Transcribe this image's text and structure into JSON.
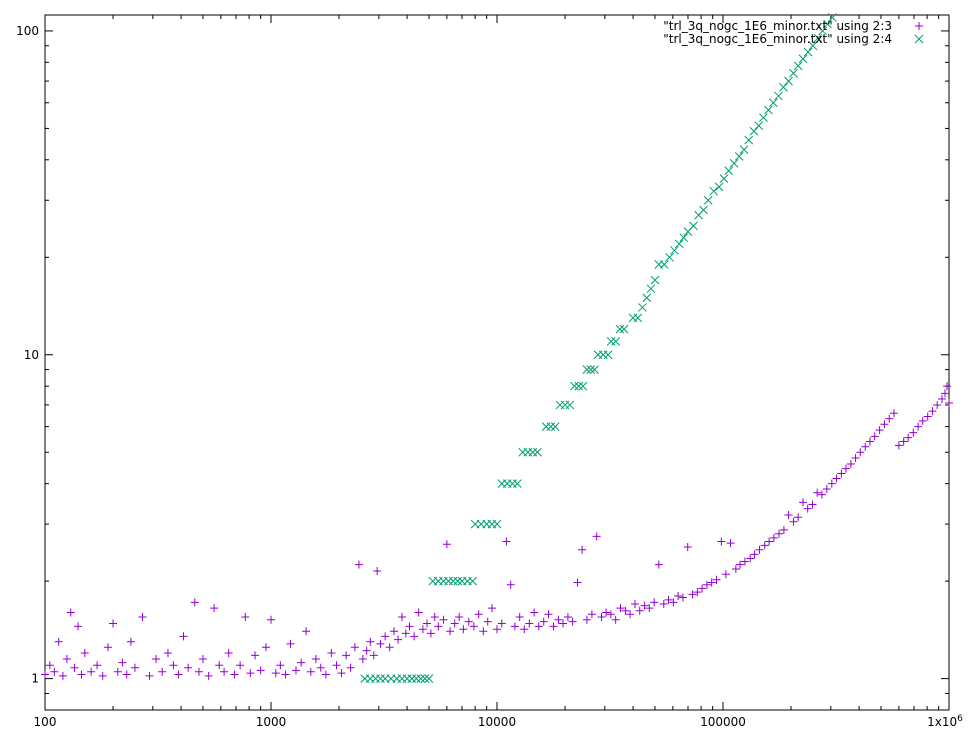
{
  "chart_data": {
    "type": "scatter",
    "xscale": "log",
    "yscale": "log",
    "xlim": [
      100,
      1000000
    ],
    "ylim": [
      0.8,
      112
    ],
    "grid": false,
    "legend_position": "top-right",
    "title": "",
    "xlabel": "",
    "ylabel": "",
    "x_ticks": [
      {
        "value": 100,
        "label": "100"
      },
      {
        "value": 1000,
        "label": "1000"
      },
      {
        "value": 10000,
        "label": "10000"
      },
      {
        "value": 100000,
        "label": "100000"
      },
      {
        "value": 1000000,
        "label": "1x10^6"
      }
    ],
    "y_ticks": [
      {
        "value": 1,
        "label": "1"
      },
      {
        "value": 10,
        "label": "10"
      },
      {
        "value": 100,
        "label": "100"
      }
    ],
    "series": [
      {
        "name": "\"trl_3q_nogc_1E6_minor.txt\" using 2:3",
        "marker": "plus",
        "color": "#9400d3",
        "points": [
          [
            100,
            1.03
          ],
          [
            105,
            1.1
          ],
          [
            110,
            1.05
          ],
          [
            115,
            1.3
          ],
          [
            120,
            1.02
          ],
          [
            125,
            1.15
          ],
          [
            130,
            1.6
          ],
          [
            135,
            1.08
          ],
          [
            140,
            1.45
          ],
          [
            145,
            1.03
          ],
          [
            150,
            1.2
          ],
          [
            160,
            1.05
          ],
          [
            170,
            1.1
          ],
          [
            180,
            1.02
          ],
          [
            190,
            1.25
          ],
          [
            200,
            1.48
          ],
          [
            210,
            1.05
          ],
          [
            220,
            1.12
          ],
          [
            230,
            1.03
          ],
          [
            240,
            1.3
          ],
          [
            250,
            1.08
          ],
          [
            270,
            1.55
          ],
          [
            290,
            1.02
          ],
          [
            310,
            1.15
          ],
          [
            330,
            1.05
          ],
          [
            350,
            1.2
          ],
          [
            370,
            1.1
          ],
          [
            390,
            1.03
          ],
          [
            410,
            1.35
          ],
          [
            430,
            1.08
          ],
          [
            460,
            1.72
          ],
          [
            480,
            1.05
          ],
          [
            500,
            1.15
          ],
          [
            530,
            1.02
          ],
          [
            560,
            1.65
          ],
          [
            590,
            1.1
          ],
          [
            620,
            1.05
          ],
          [
            650,
            1.2
          ],
          [
            690,
            1.03
          ],
          [
            730,
            1.1
          ],
          [
            770,
            1.55
          ],
          [
            810,
            1.04
          ],
          [
            850,
            1.18
          ],
          [
            900,
            1.06
          ],
          [
            950,
            1.25
          ],
          [
            1000,
            1.52
          ],
          [
            1050,
            1.04
          ],
          [
            1100,
            1.1
          ],
          [
            1160,
            1.03
          ],
          [
            1220,
            1.28
          ],
          [
            1290,
            1.06
          ],
          [
            1360,
            1.12
          ],
          [
            1430,
            1.4
          ],
          [
            1500,
            1.05
          ],
          [
            1580,
            1.15
          ],
          [
            1660,
            1.08
          ],
          [
            1750,
            1.03
          ],
          [
            1850,
            1.2
          ],
          [
            1950,
            1.1
          ],
          [
            2050,
            1.04
          ],
          [
            2150,
            1.18
          ],
          [
            2250,
            1.08
          ],
          [
            2350,
            1.25
          ],
          [
            2450,
            2.25
          ],
          [
            2550,
            1.15
          ],
          [
            2650,
            1.22
          ],
          [
            2750,
            1.3
          ],
          [
            2850,
            1.18
          ],
          [
            2950,
            2.15
          ],
          [
            3050,
            1.28
          ],
          [
            3200,
            1.35
          ],
          [
            3350,
            1.25
          ],
          [
            3500,
            1.4
          ],
          [
            3650,
            1.32
          ],
          [
            3800,
            1.55
          ],
          [
            3950,
            1.38
          ],
          [
            4100,
            1.45
          ],
          [
            4300,
            1.35
          ],
          [
            4500,
            1.6
          ],
          [
            4700,
            1.42
          ],
          [
            4900,
            1.48
          ],
          [
            5100,
            1.38
          ],
          [
            5300,
            1.55
          ],
          [
            5500,
            1.45
          ],
          [
            5800,
            1.52
          ],
          [
            6000,
            2.6
          ],
          [
            6200,
            1.4
          ],
          [
            6500,
            1.48
          ],
          [
            6800,
            1.55
          ],
          [
            7100,
            1.42
          ],
          [
            7500,
            1.5
          ],
          [
            7900,
            1.45
          ],
          [
            8300,
            1.58
          ],
          [
            8700,
            1.4
          ],
          [
            9100,
            1.5
          ],
          [
            9500,
            1.65
          ],
          [
            10000,
            1.42
          ],
          [
            10500,
            1.48
          ],
          [
            11000,
            2.65
          ],
          [
            11500,
            1.95
          ],
          [
            12000,
            1.45
          ],
          [
            12600,
            1.55
          ],
          [
            13200,
            1.42
          ],
          [
            13900,
            1.48
          ],
          [
            14600,
            1.6
          ],
          [
            15300,
            1.45
          ],
          [
            16100,
            1.5
          ],
          [
            16900,
            1.58
          ],
          [
            17800,
            1.45
          ],
          [
            18700,
            1.52
          ],
          [
            19600,
            1.48
          ],
          [
            20600,
            1.55
          ],
          [
            21600,
            1.5
          ],
          [
            22700,
            1.98
          ],
          [
            23800,
            2.5
          ],
          [
            25000,
            1.52
          ],
          [
            26300,
            1.58
          ],
          [
            27600,
            2.75
          ],
          [
            29000,
            1.55
          ],
          [
            30400,
            1.6
          ],
          [
            31900,
            1.58
          ],
          [
            33500,
            1.52
          ],
          [
            35200,
            1.65
          ],
          [
            37000,
            1.62
          ],
          [
            38800,
            1.58
          ],
          [
            40800,
            1.7
          ],
          [
            42800,
            1.62
          ],
          [
            45000,
            1.68
          ],
          [
            47200,
            1.65
          ],
          [
            49600,
            1.72
          ],
          [
            52000,
            2.25
          ],
          [
            54700,
            1.7
          ],
          [
            57400,
            1.75
          ],
          [
            60300,
            1.72
          ],
          [
            63300,
            1.8
          ],
          [
            66500,
            1.78
          ],
          [
            69800,
            2.55
          ],
          [
            73300,
            1.82
          ],
          [
            77000,
            1.85
          ],
          [
            80800,
            1.9
          ],
          [
            84900,
            1.95
          ],
          [
            89100,
            1.98
          ],
          [
            93600,
            2.02
          ],
          [
            98300,
            2.65
          ],
          [
            103000,
            2.1
          ],
          [
            108000,
            2.62
          ],
          [
            114000,
            2.18
          ],
          [
            119000,
            2.25
          ],
          [
            125000,
            2.3
          ],
          [
            132000,
            2.35
          ],
          [
            138000,
            2.42
          ],
          [
            145000,
            2.5
          ],
          [
            153000,
            2.58
          ],
          [
            160000,
            2.65
          ],
          [
            168000,
            2.72
          ],
          [
            177000,
            2.8
          ],
          [
            186000,
            2.88
          ],
          [
            195000,
            3.2
          ],
          [
            205000,
            3.05
          ],
          [
            215000,
            3.15
          ],
          [
            226000,
            3.5
          ],
          [
            237000,
            3.35
          ],
          [
            249000,
            3.45
          ],
          [
            261000,
            3.75
          ],
          [
            274000,
            3.7
          ],
          [
            288000,
            3.85
          ],
          [
            303000,
            4.0
          ],
          [
            318000,
            4.15
          ],
          [
            334000,
            4.3
          ],
          [
            350000,
            4.45
          ],
          [
            368000,
            4.6
          ],
          [
            386000,
            4.8
          ],
          [
            405000,
            5.0
          ],
          [
            426000,
            5.2
          ],
          [
            447000,
            5.4
          ],
          [
            469000,
            5.6
          ],
          [
            493000,
            5.85
          ],
          [
            518000,
            6.1
          ],
          [
            544000,
            6.35
          ],
          [
            571000,
            6.6
          ],
          [
            600000,
            5.25
          ],
          [
            630000,
            5.4
          ],
          [
            660000,
            5.55
          ],
          [
            695000,
            5.75
          ],
          [
            730000,
            6.0
          ],
          [
            765000,
            6.25
          ],
          [
            805000,
            6.45
          ],
          [
            845000,
            6.7
          ],
          [
            887000,
            7.0
          ],
          [
            931000,
            7.3
          ],
          [
            960000,
            7.6
          ],
          [
            980000,
            8.0
          ],
          [
            1000000,
            7.1
          ]
        ]
      },
      {
        "name": "\"trl_3q_nogc_1E6_minor.txt\" using 2:4",
        "marker": "x",
        "color": "#009e73",
        "points": [
          [
            2600,
            1
          ],
          [
            2750,
            1
          ],
          [
            2900,
            1
          ],
          [
            3050,
            1
          ],
          [
            3200,
            1
          ],
          [
            3400,
            1
          ],
          [
            3600,
            1
          ],
          [
            3800,
            1
          ],
          [
            4000,
            1
          ],
          [
            4200,
            1
          ],
          [
            4400,
            1
          ],
          [
            4600,
            1
          ],
          [
            4800,
            1
          ],
          [
            5000,
            1
          ],
          [
            5200,
            2
          ],
          [
            5500,
            2
          ],
          [
            5800,
            2
          ],
          [
            6100,
            2
          ],
          [
            6400,
            2
          ],
          [
            6700,
            2
          ],
          [
            7000,
            2
          ],
          [
            7400,
            2
          ],
          [
            7800,
            2
          ],
          [
            8000,
            3
          ],
          [
            8500,
            3
          ],
          [
            9000,
            3
          ],
          [
            9500,
            3
          ],
          [
            10000,
            3
          ],
          [
            10500,
            4
          ],
          [
            11100,
            4
          ],
          [
            11700,
            4
          ],
          [
            12300,
            4
          ],
          [
            13000,
            5
          ],
          [
            13700,
            5
          ],
          [
            14400,
            5
          ],
          [
            15100,
            5
          ],
          [
            16500,
            6
          ],
          [
            17300,
            6
          ],
          [
            18100,
            6
          ],
          [
            19000,
            7
          ],
          [
            20000,
            7
          ],
          [
            21000,
            7
          ],
          [
            22000,
            8
          ],
          [
            23000,
            8
          ],
          [
            24000,
            8
          ],
          [
            25000,
            9
          ],
          [
            26000,
            9
          ],
          [
            27000,
            9
          ],
          [
            28000,
            10
          ],
          [
            29500,
            10
          ],
          [
            31000,
            10
          ],
          [
            32000,
            11
          ],
          [
            33500,
            11
          ],
          [
            35000,
            12
          ],
          [
            36500,
            12
          ],
          [
            40000,
            13
          ],
          [
            42000,
            13
          ],
          [
            44000,
            14
          ],
          [
            46000,
            15
          ],
          [
            48000,
            16
          ],
          [
            50000,
            17
          ],
          [
            52000,
            19
          ],
          [
            55000,
            19
          ],
          [
            58000,
            20
          ],
          [
            61000,
            21
          ],
          [
            64000,
            22
          ],
          [
            67000,
            23
          ],
          [
            70000,
            24
          ],
          [
            74000,
            25
          ],
          [
            78000,
            27
          ],
          [
            82000,
            28
          ],
          [
            86000,
            30
          ],
          [
            91000,
            32
          ],
          [
            96000,
            33
          ],
          [
            101000,
            35
          ],
          [
            106000,
            37
          ],
          [
            112000,
            39
          ],
          [
            118000,
            41
          ],
          [
            124000,
            43
          ],
          [
            130000,
            46
          ],
          [
            137000,
            49
          ],
          [
            144000,
            51
          ],
          [
            151000,
            54
          ],
          [
            159000,
            57
          ],
          [
            167000,
            60
          ],
          [
            176000,
            63
          ],
          [
            185000,
            67
          ],
          [
            195000,
            70
          ],
          [
            205000,
            74
          ],
          [
            215000,
            78
          ],
          [
            226000,
            82
          ],
          [
            238000,
            86
          ],
          [
            250000,
            90
          ],
          [
            263000,
            95
          ],
          [
            276000,
            100
          ],
          [
            290000,
            105
          ],
          [
            305000,
            110
          ],
          [
            320000,
            115
          ]
        ]
      }
    ]
  }
}
